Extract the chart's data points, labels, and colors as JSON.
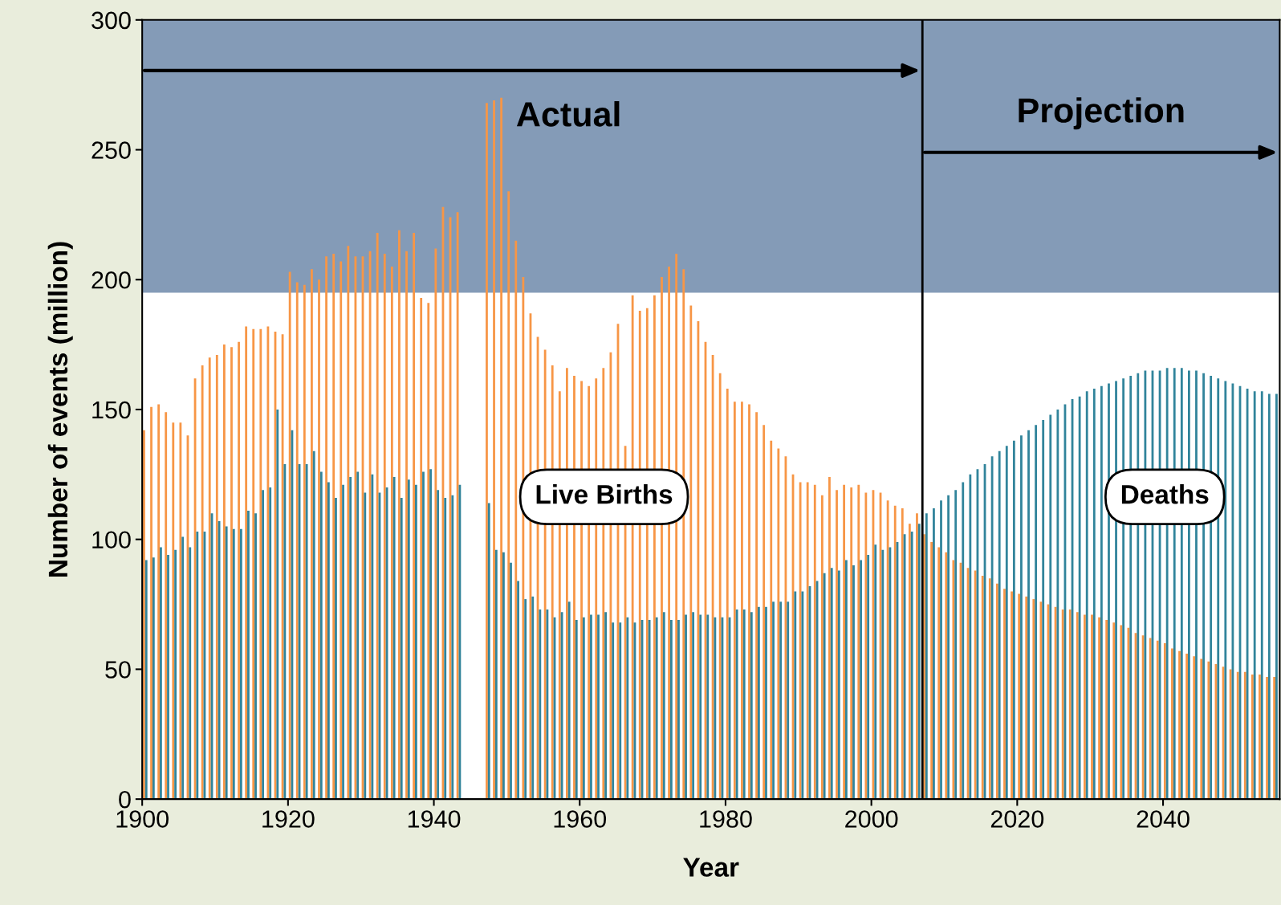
{
  "chart_data": {
    "type": "bar",
    "xlabel": "Year",
    "ylabel": "Number of events (million)",
    "x": [
      1900,
      1901,
      1902,
      1903,
      1904,
      1905,
      1906,
      1907,
      1908,
      1909,
      1910,
      1911,
      1912,
      1913,
      1914,
      1915,
      1916,
      1917,
      1918,
      1919,
      1920,
      1921,
      1922,
      1923,
      1924,
      1925,
      1926,
      1927,
      1928,
      1929,
      1930,
      1931,
      1932,
      1933,
      1934,
      1935,
      1936,
      1937,
      1938,
      1939,
      1940,
      1941,
      1942,
      1943,
      1944,
      1945,
      1946,
      1947,
      1948,
      1949,
      1950,
      1951,
      1952,
      1953,
      1954,
      1955,
      1956,
      1957,
      1958,
      1959,
      1960,
      1961,
      1962,
      1963,
      1964,
      1965,
      1966,
      1967,
      1968,
      1969,
      1970,
      1971,
      1972,
      1973,
      1974,
      1975,
      1976,
      1977,
      1978,
      1979,
      1980,
      1981,
      1982,
      1983,
      1984,
      1985,
      1986,
      1987,
      1988,
      1989,
      1990,
      1991,
      1992,
      1993,
      1994,
      1995,
      1996,
      1997,
      1998,
      1999,
      2000,
      2001,
      2002,
      2003,
      2004,
      2005,
      2006,
      2007,
      2008,
      2009,
      2010,
      2011,
      2012,
      2013,
      2014,
      2015,
      2016,
      2017,
      2018,
      2019,
      2020,
      2021,
      2022,
      2023,
      2024,
      2025,
      2026,
      2027,
      2028,
      2029,
      2030,
      2031,
      2032,
      2033,
      2034,
      2035,
      2036,
      2037,
      2038,
      2039,
      2040,
      2041,
      2042,
      2043,
      2044,
      2045,
      2046,
      2047,
      2048,
      2049,
      2050,
      2051,
      2052,
      2053,
      2054,
      2055
    ],
    "series": [
      {
        "name": "Live Births",
        "color": "#f79646",
        "values": [
          142,
          151,
          152,
          149,
          145,
          145,
          140,
          162,
          167,
          170,
          171,
          175,
          174,
          176,
          182,
          181,
          181,
          182,
          180,
          179,
          203,
          199,
          198,
          204,
          200,
          209,
          210,
          207,
          213,
          209,
          209,
          211,
          218,
          210,
          205,
          219,
          211,
          218,
          193,
          191,
          212,
          228,
          224,
          226,
          null,
          null,
          null,
          268,
          269,
          270,
          234,
          215,
          201,
          187,
          178,
          173,
          167,
          157,
          166,
          163,
          161,
          159,
          162,
          166,
          172,
          183,
          136,
          194,
          188,
          189,
          194,
          201,
          205,
          210,
          204,
          190,
          184,
          176,
          171,
          164,
          158,
          153,
          153,
          152,
          149,
          144,
          138,
          135,
          132,
          125,
          122,
          122,
          121,
          117,
          124,
          119,
          121,
          120,
          121,
          118,
          119,
          118,
          115,
          113,
          112,
          106,
          110,
          102,
          99,
          97,
          95,
          92,
          91,
          89,
          88,
          86,
          85,
          83,
          81,
          80,
          79,
          78,
          77,
          76,
          75,
          74,
          73,
          73,
          72,
          71,
          71,
          70,
          69,
          68,
          67,
          66,
          64,
          63,
          62,
          61,
          60,
          58,
          57,
          56,
          55,
          54,
          53,
          52,
          51,
          50,
          49,
          49,
          48,
          48,
          47,
          47
        ]
      },
      {
        "name": "Deaths",
        "color": "#31849b",
        "values": [
          92,
          93,
          97,
          94,
          96,
          101,
          97,
          103,
          103,
          110,
          107,
          105,
          104,
          104,
          111,
          110,
          119,
          120,
          150,
          129,
          142,
          129,
          129,
          134,
          126,
          122,
          116,
          121,
          124,
          126,
          118,
          125,
          118,
          120,
          124,
          116,
          123,
          121,
          126,
          127,
          119,
          116,
          117,
          121,
          null,
          null,
          null,
          114,
          96,
          95,
          91,
          84,
          77,
          78,
          73,
          73,
          70,
          72,
          76,
          69,
          70,
          71,
          71,
          72,
          68,
          68,
          70,
          68,
          69,
          69,
          70,
          72,
          69,
          69,
          71,
          72,
          71,
          71,
          70,
          70,
          70,
          73,
          73,
          72,
          74,
          74,
          76,
          76,
          76,
          80,
          80,
          82,
          84,
          87,
          89,
          88,
          92,
          90,
          92,
          94,
          98,
          96,
          97,
          99,
          102,
          103,
          106,
          110,
          112,
          115,
          117,
          119,
          122,
          125,
          127,
          129,
          132,
          134,
          136,
          138,
          140,
          142,
          144,
          146,
          148,
          150,
          152,
          154,
          155,
          157,
          158,
          159,
          160,
          161,
          162,
          163,
          164,
          165,
          165,
          165,
          166,
          166,
          166,
          165,
          165,
          164,
          163,
          162,
          161,
          160,
          159,
          158,
          157,
          157,
          156,
          156
        ]
      }
    ],
    "xlim": [
      1900,
      2056
    ],
    "xticks": [
      1900,
      1920,
      1940,
      1960,
      1980,
      2000,
      2020,
      2040
    ],
    "ylim": [
      0,
      300
    ],
    "yticks": [
      0,
      50,
      100,
      150,
      200,
      250,
      300
    ],
    "ref_lines": [
      {
        "axis": "x",
        "value": 2007,
        "color": "#000000"
      }
    ],
    "annotations": [
      "Actual",
      "Projection"
    ],
    "grid": false,
    "legend": false
  }
}
